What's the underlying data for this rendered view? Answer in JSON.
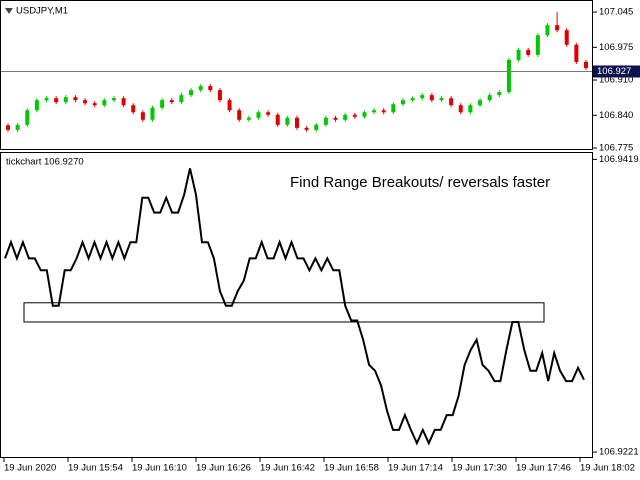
{
  "chart_data": [
    {
      "type": "candlestick",
      "title": "USDJPY,M1",
      "open": [
        106.82,
        106.811,
        106.821,
        106.85,
        106.87,
        106.874,
        106.866,
        106.876,
        106.87,
        106.864,
        106.86,
        106.87,
        106.874,
        106.86,
        106.846,
        106.831,
        106.855,
        106.87,
        106.866,
        106.88,
        106.89,
        106.898,
        106.89,
        106.87,
        106.85,
        106.831,
        106.835,
        106.846,
        106.841,
        106.821,
        106.835,
        106.815,
        106.811,
        106.821,
        106.835,
        106.831,
        106.841,
        106.837,
        106.846,
        106.85,
        106.846,
        106.862,
        106.87,
        106.874,
        106.88,
        106.87,
        106.874,
        106.86,
        106.846,
        106.86,
        106.87,
        106.88,
        106.886,
        106.95,
        106.97,
        106.96,
        106.999,
        107.019,
        107.009,
        106.98,
        106.946
      ],
      "high": [
        106.824,
        106.825,
        106.854,
        106.874,
        106.878,
        106.878,
        106.88,
        106.88,
        106.874,
        106.868,
        106.874,
        106.878,
        106.878,
        106.864,
        106.85,
        106.859,
        106.874,
        106.874,
        106.884,
        106.894,
        106.902,
        106.902,
        106.894,
        106.874,
        106.854,
        106.839,
        106.85,
        106.85,
        106.845,
        106.839,
        106.839,
        106.819,
        106.825,
        106.839,
        106.839,
        106.845,
        106.845,
        106.85,
        106.854,
        106.854,
        106.866,
        106.874,
        106.878,
        106.884,
        106.884,
        106.878,
        106.878,
        106.864,
        106.864,
        106.874,
        106.884,
        106.89,
        106.954,
        106.974,
        106.974,
        107.003,
        107.023,
        107.045,
        107.013,
        106.984,
        106.95
      ],
      "low": [
        106.807,
        106.807,
        106.817,
        106.846,
        106.866,
        106.862,
        106.862,
        106.866,
        106.86,
        106.856,
        106.856,
        106.866,
        106.856,
        106.842,
        106.827,
        106.827,
        106.851,
        106.862,
        106.862,
        106.876,
        106.886,
        106.886,
        106.866,
        106.846,
        106.827,
        106.827,
        106.831,
        106.837,
        106.817,
        106.817,
        106.811,
        106.807,
        106.807,
        106.817,
        106.827,
        106.827,
        106.833,
        106.833,
        106.842,
        106.842,
        106.842,
        106.858,
        106.866,
        106.87,
        106.866,
        106.866,
        106.856,
        106.842,
        106.842,
        106.856,
        106.866,
        106.876,
        106.882,
        106.946,
        106.956,
        106.956,
        106.995,
        107.005,
        106.976,
        106.942,
        106.93
      ],
      "close": [
        106.811,
        106.821,
        106.85,
        106.87,
        106.874,
        106.866,
        106.876,
        106.87,
        106.864,
        106.86,
        106.87,
        106.874,
        106.86,
        106.846,
        106.831,
        106.855,
        106.87,
        106.866,
        106.88,
        106.89,
        106.898,
        106.89,
        106.87,
        106.85,
        106.831,
        106.835,
        106.846,
        106.841,
        106.821,
        106.835,
        106.815,
        106.811,
        106.821,
        106.835,
        106.831,
        106.841,
        106.837,
        106.846,
        106.85,
        106.846,
        106.862,
        106.87,
        106.874,
        106.88,
        106.87,
        106.874,
        106.86,
        106.846,
        106.86,
        106.87,
        106.88,
        106.886,
        106.95,
        106.97,
        106.96,
        106.999,
        107.019,
        107.009,
        106.98,
        106.946,
        106.934
      ],
      "up_color": "#00c800",
      "down_color": "#e00000",
      "current_price": 106.927,
      "ylim": [
        106.771,
        107.069
      ],
      "yticks": [
        107.045,
        106.975,
        {
          "value": 106.91,
          "label": "106.910"
        },
        {
          "value": 106.84,
          "label": "106.840"
        },
        106.775
      ]
    },
    {
      "type": "line",
      "title": "tickchart 106.9270",
      "color": "#000000",
      "values": [
        106.9352,
        106.9363,
        106.9352,
        106.9363,
        106.9352,
        106.9352,
        106.9344,
        106.9344,
        106.932,
        106.932,
        106.9344,
        106.9344,
        106.9352,
        106.9363,
        106.9352,
        106.9363,
        106.9352,
        106.9363,
        106.9352,
        106.9363,
        106.9352,
        106.9363,
        106.9363,
        106.9393,
        106.9393,
        106.9383,
        106.9383,
        106.9393,
        106.9383,
        106.9383,
        106.9395,
        106.9413,
        106.9395,
        106.9363,
        106.9363,
        106.9352,
        106.933,
        106.932,
        106.932,
        106.933,
        106.9337,
        106.9352,
        106.9352,
        106.9363,
        106.9352,
        106.9352,
        106.9363,
        106.9352,
        106.9363,
        106.9352,
        106.9352,
        106.9344,
        106.9352,
        106.9344,
        106.9352,
        106.9344,
        106.9344,
        106.932,
        106.931,
        106.931,
        106.9297,
        106.928,
        106.9276,
        106.9266,
        106.9249,
        106.9236,
        106.9236,
        106.9246,
        106.9236,
        106.9227,
        106.9236,
        106.9227,
        106.9236,
        106.9236,
        106.9246,
        106.9246,
        106.9259,
        106.928,
        106.929,
        106.9297,
        106.928,
        106.9276,
        106.9269,
        106.9269,
        106.929,
        106.9309,
        106.9309,
        106.929,
        106.9276,
        106.9276,
        106.9288,
        106.9269,
        106.9288,
        106.9276,
        106.9269,
        106.9269,
        106.9278,
        106.927
      ],
      "range_box": {
        "high": 106.9322,
        "low": 106.9309
      },
      "annotation": "Find Range Breakouts/ reversals faster",
      "ylim": [
        106.9217,
        106.9424
      ],
      "yticks": [
        106.9419,
        106.9221
      ]
    }
  ],
  "time_labels": [
    "19 Jun 2020",
    "19 Jun 15:54",
    "19 Jun 16:10",
    "19 Jun 16:26",
    "19 Jun 16:42",
    "19 Jun 16:58",
    "19 Jun 17:14",
    "19 Jun 17:30",
    "19 Jun 17:46",
    "19 Jun 18:02"
  ]
}
